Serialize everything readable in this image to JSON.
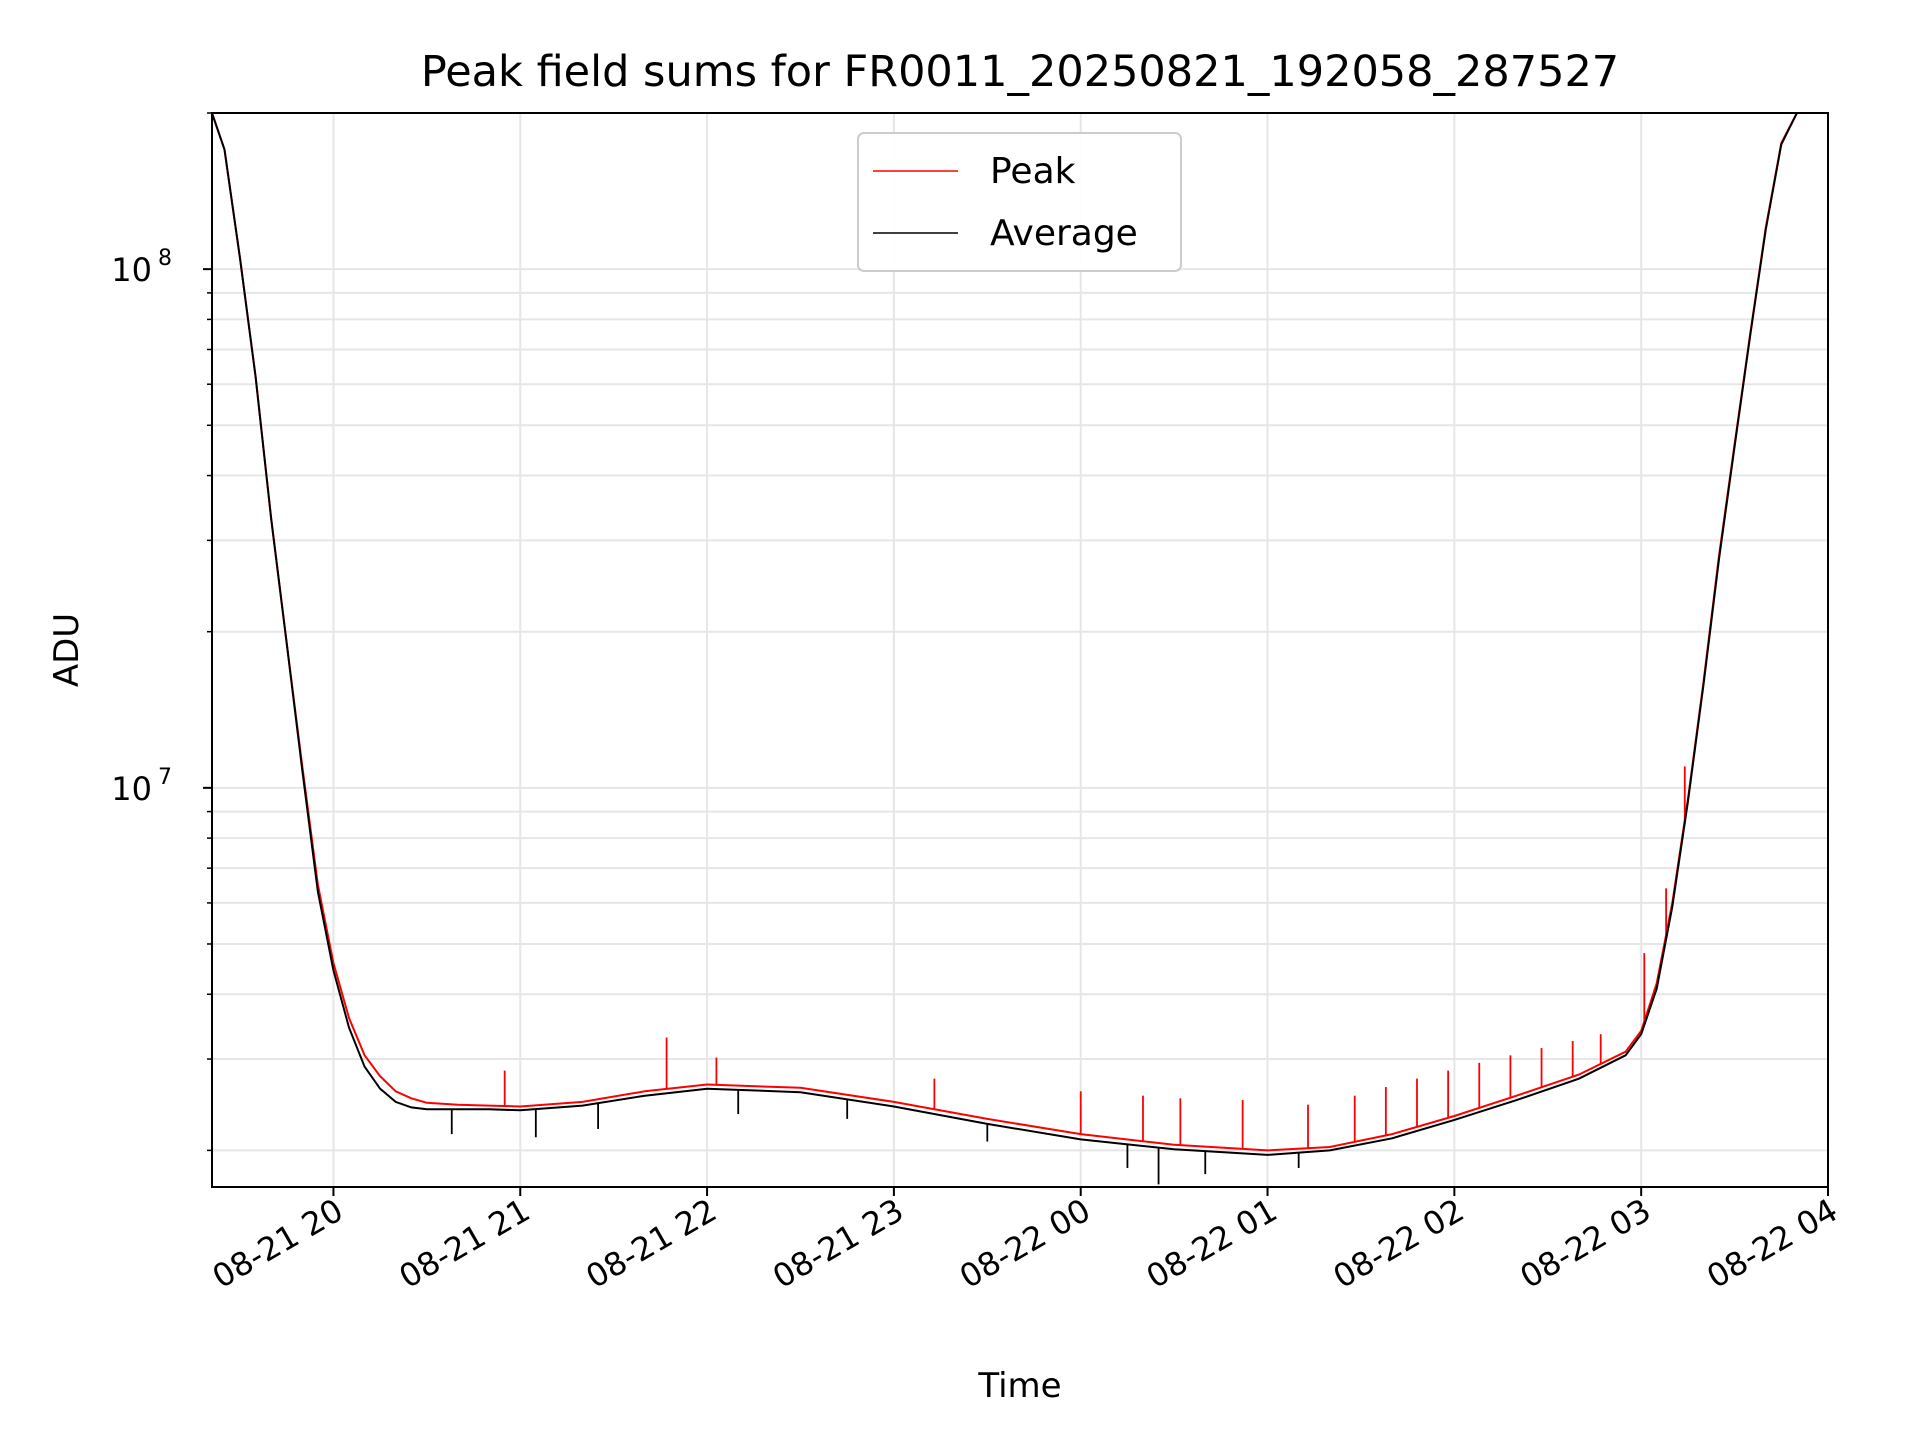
{
  "chart_data": {
    "type": "line",
    "title": "Peak field sums for FR0011_20250821_192058_287527",
    "xlabel": "Time",
    "ylabel": "ADU",
    "yscale": "log",
    "xlim": [
      "2025-08-21 19:21",
      "2025-08-22 04:00"
    ],
    "ylim": [
      1700000,
      200000000
    ],
    "x_tick_labels": [
      "08-21 20",
      "08-21 21",
      "08-21 22",
      "08-21 23",
      "08-22 00",
      "08-22 01",
      "08-22 02",
      "08-22 03",
      "08-22 04"
    ],
    "y_tick_labels": [
      {
        "value": 10000000,
        "base": "10",
        "exp": "7"
      },
      {
        "value": 100000000,
        "base": "10",
        "exp": "8"
      }
    ],
    "grid": true,
    "legend_position": "upper center",
    "x": [
      "2025-08-21 19:21",
      "2025-08-21 19:25",
      "2025-08-21 19:30",
      "2025-08-21 19:35",
      "2025-08-21 19:40",
      "2025-08-21 19:45",
      "2025-08-21 19:50",
      "2025-08-21 19:55",
      "2025-08-21 20:00",
      "2025-08-21 20:05",
      "2025-08-21 20:10",
      "2025-08-21 20:15",
      "2025-08-21 20:20",
      "2025-08-21 20:25",
      "2025-08-21 20:30",
      "2025-08-21 20:40",
      "2025-08-21 20:50",
      "2025-08-21 21:00",
      "2025-08-21 21:20",
      "2025-08-21 21:40",
      "2025-08-21 22:00",
      "2025-08-21 22:30",
      "2025-08-21 23:00",
      "2025-08-21 23:30",
      "2025-08-22 00:00",
      "2025-08-22 00:30",
      "2025-08-22 01:00",
      "2025-08-22 01:20",
      "2025-08-22 01:40",
      "2025-08-22 02:00",
      "2025-08-22 02:20",
      "2025-08-22 02:40",
      "2025-08-22 02:55",
      "2025-08-22 03:00",
      "2025-08-22 03:05",
      "2025-08-22 03:10",
      "2025-08-22 03:15",
      "2025-08-22 03:20",
      "2025-08-22 03:25",
      "2025-08-22 03:30",
      "2025-08-22 03:35",
      "2025-08-22 03:40",
      "2025-08-22 03:45",
      "2025-08-22 03:50",
      "2025-08-22 03:55"
    ],
    "series": [
      {
        "name": "Peak",
        "color": "#ff0000",
        "values": [
          200000000,
          170000000,
          105000000,
          62000000,
          33000000,
          19000000,
          11000000,
          6500000,
          4600000,
          3600000,
          3050000,
          2780000,
          2600000,
          2520000,
          2470000,
          2450000,
          2440000,
          2430000,
          2480000,
          2600000,
          2680000,
          2640000,
          2480000,
          2300000,
          2150000,
          2050000,
          2000000,
          2030000,
          2150000,
          2330000,
          2550000,
          2800000,
          3100000,
          3400000,
          4200000,
          6000000,
          9500000,
          16000000,
          28000000,
          46000000,
          75000000,
          120000000,
          175000000,
          200000000,
          200000000
        ],
        "spikes": [
          {
            "x": "2025-08-21 20:55",
            "value": 2850000
          },
          {
            "x": "2025-08-21 21:47",
            "value": 3300000
          },
          {
            "x": "2025-08-21 22:03",
            "value": 3020000
          },
          {
            "x": "2025-08-21 23:13",
            "value": 2750000
          },
          {
            "x": "2025-08-22 00:00",
            "value": 2600000
          },
          {
            "x": "2025-08-22 00:20",
            "value": 2550000
          },
          {
            "x": "2025-08-22 00:32",
            "value": 2520000
          },
          {
            "x": "2025-08-22 00:52",
            "value": 2500000
          },
          {
            "x": "2025-08-22 01:13",
            "value": 2450000
          },
          {
            "x": "2025-08-22 01:28",
            "value": 2550000
          },
          {
            "x": "2025-08-22 01:38",
            "value": 2650000
          },
          {
            "x": "2025-08-22 01:48",
            "value": 2750000
          },
          {
            "x": "2025-08-22 01:58",
            "value": 2850000
          },
          {
            "x": "2025-08-22 02:08",
            "value": 2950000
          },
          {
            "x": "2025-08-22 02:18",
            "value": 3050000
          },
          {
            "x": "2025-08-22 02:28",
            "value": 3150000
          },
          {
            "x": "2025-08-22 02:38",
            "value": 3250000
          },
          {
            "x": "2025-08-22 02:47",
            "value": 3350000
          },
          {
            "x": "2025-08-22 03:01",
            "value": 4800000
          },
          {
            "x": "2025-08-22 03:08",
            "value": 6400000
          },
          {
            "x": "2025-08-22 03:14",
            "value": 11000000
          }
        ]
      },
      {
        "name": "Average",
        "color": "#000000",
        "values": [
          200000000,
          170000000,
          105000000,
          62000000,
          33000000,
          19000000,
          10800000,
          6300000,
          4450000,
          3450000,
          2900000,
          2630000,
          2480000,
          2420000,
          2400000,
          2400000,
          2400000,
          2390000,
          2440000,
          2550000,
          2630000,
          2590000,
          2430000,
          2250000,
          2100000,
          2010000,
          1960000,
          2000000,
          2110000,
          2290000,
          2500000,
          2750000,
          3050000,
          3350000,
          4100000,
          5900000,
          9400000,
          15800000,
          27600000,
          45500000,
          74500000,
          119000000,
          174000000,
          200000000,
          200000000
        ],
        "dips": [
          {
            "x": "2025-08-21 20:38",
            "value": 2150000
          },
          {
            "x": "2025-08-21 21:05",
            "value": 2120000
          },
          {
            "x": "2025-08-21 21:25",
            "value": 2200000
          },
          {
            "x": "2025-08-21 22:10",
            "value": 2350000
          },
          {
            "x": "2025-08-21 22:45",
            "value": 2300000
          },
          {
            "x": "2025-08-21 23:30",
            "value": 2080000
          },
          {
            "x": "2025-08-22 00:15",
            "value": 1850000
          },
          {
            "x": "2025-08-22 00:25",
            "value": 1720000
          },
          {
            "x": "2025-08-22 00:40",
            "value": 1800000
          },
          {
            "x": "2025-08-22 01:10",
            "value": 1850000
          }
        ]
      }
    ]
  }
}
